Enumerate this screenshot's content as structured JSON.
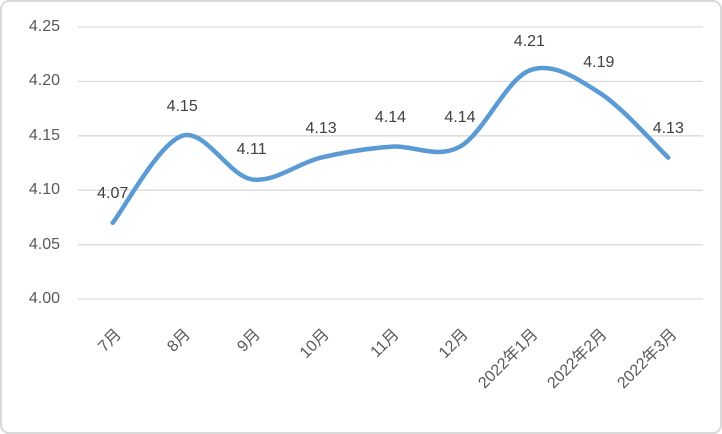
{
  "chart_data": {
    "type": "line",
    "title": "",
    "xlabel": "",
    "ylabel": "",
    "categories": [
      "7月",
      "8月",
      "9月",
      "10月",
      "11月",
      "12月",
      "2022年1月",
      "2022年2月",
      "2022年3月"
    ],
    "series": [
      {
        "name": "",
        "values": [
          4.07,
          4.15,
          4.11,
          4.13,
          4.14,
          4.14,
          4.21,
          4.19,
          4.13
        ],
        "data_labels": [
          "4.07",
          "4.15",
          "4.11",
          "4.13",
          "4.14",
          "4.14",
          "4.21",
          "4.19",
          "4.13"
        ]
      }
    ],
    "ylim": [
      4.0,
      4.25
    ],
    "y_tick_labels": [
      "4.25",
      "4.20",
      "4.15",
      "4.10",
      "4.05",
      "4.00"
    ],
    "y_tick_values": [
      4.25,
      4.2,
      4.15,
      4.1,
      4.05,
      4.0
    ],
    "grid": "horizontal",
    "legend_position": "none",
    "line_smooth": true,
    "colors": {
      "line": "#5B9BD5",
      "gridline": "#D9D9D9",
      "tick_text": "#595959",
      "data_label_text": "#404040",
      "frame_border": "#D9D9D9",
      "background": "#FFFFFF"
    }
  }
}
